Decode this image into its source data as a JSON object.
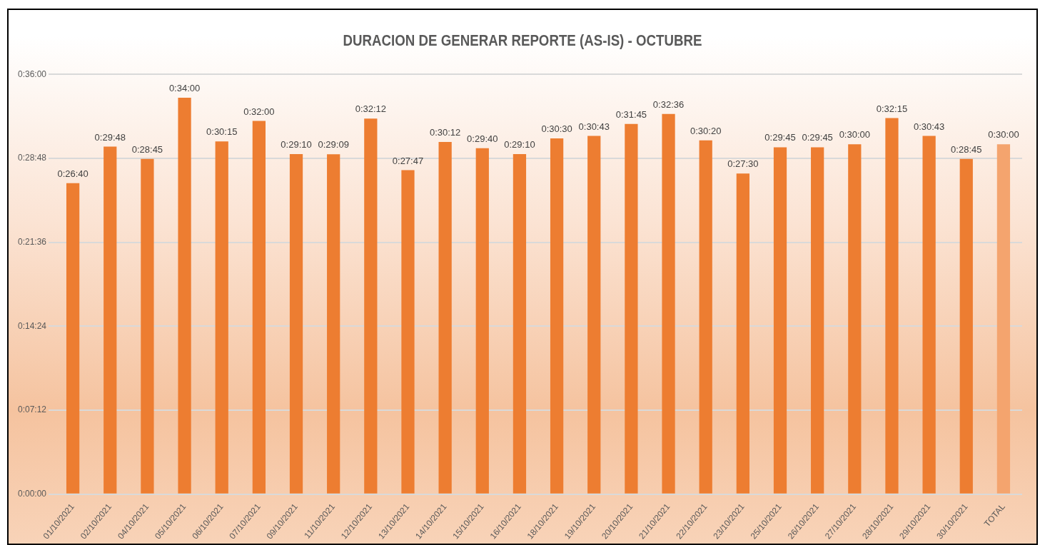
{
  "chart_data": {
    "type": "bar",
    "title": "DURACION DE GENERAR REPORTE (AS-IS) - OCTUBRE",
    "categories": [
      "01/10/2021",
      "02/10/2021",
      "04/10/2021",
      "05/10/2021",
      "06/10/2021",
      "07/10/2021",
      "09/10/2021",
      "11/10/2021",
      "12/10/2021",
      "13/10/2021",
      "14/10/2021",
      "15/10/2021",
      "16/10/2021",
      "18/10/2021",
      "19/10/2021",
      "20/10/2021",
      "21/10/2021",
      "22/10/2021",
      "23/10/2021",
      "25/10/2021",
      "26/10/2021",
      "27/10/2021",
      "28/10/2021",
      "29/10/2021",
      "30/10/2021",
      "TOTAL"
    ],
    "values": [
      26.667,
      29.8,
      28.75,
      34,
      30.25,
      32,
      29.167,
      29.15,
      32.2,
      27.783,
      30.2,
      29.667,
      29.167,
      30.5,
      30.717,
      31.75,
      32.6,
      30.333,
      27.5,
      29.75,
      29.75,
      30,
      32.25,
      30.717,
      28.75,
      30
    ],
    "value_labels": [
      "0:26:40",
      "0:29:48",
      "0:28:45",
      "0:34:00",
      "0:30:15",
      "0:32:00",
      "0:29:10",
      "0:29:09",
      "0:32:12",
      "0:27:47",
      "0:30:12",
      "0:29:40",
      "0:29:10",
      "0:30:30",
      "0:30:43",
      "0:31:45",
      "0:32:36",
      "0:30:20",
      "0:27:30",
      "0:29:45",
      "0:29:45",
      "0:30:00",
      "0:32:15",
      "0:30:43",
      "0:28:45",
      "0:30:00"
    ],
    "colors": [
      "#ed7d31",
      "#ed7d31",
      "#ed7d31",
      "#ed7d31",
      "#ed7d31",
      "#ed7d31",
      "#ed7d31",
      "#ed7d31",
      "#ed7d31",
      "#ed7d31",
      "#ed7d31",
      "#ed7d31",
      "#ed7d31",
      "#ed7d31",
      "#ed7d31",
      "#ed7d31",
      "#ed7d31",
      "#ed7d31",
      "#ed7d31",
      "#ed7d31",
      "#ed7d31",
      "#ed7d31",
      "#ed7d31",
      "#ed7d31",
      "#ed7d31",
      "#f4a46e"
    ],
    "ylim": [
      0,
      36
    ],
    "yticks": [
      {
        "value": 0,
        "label": "0:00:00"
      },
      {
        "value": 7.2,
        "label": "0:07:12"
      },
      {
        "value": 14.4,
        "label": "0:14:24"
      },
      {
        "value": 21.6,
        "label": "0:21:36"
      },
      {
        "value": 28.8,
        "label": "0:28:48"
      },
      {
        "value": 36,
        "label": "0:36:00"
      }
    ],
    "grid": "y",
    "legend": false
  }
}
